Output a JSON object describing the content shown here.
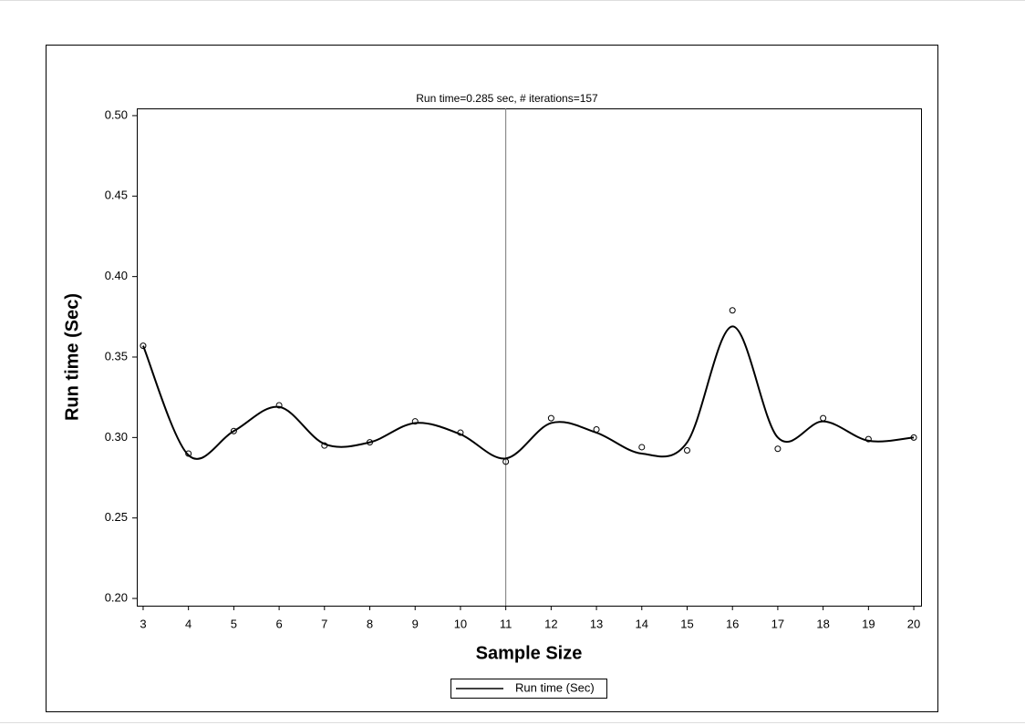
{
  "chart_data": {
    "type": "scatter",
    "title": "Run time=0.285 sec, # iterations=157",
    "x_label": "Sample Size",
    "y_label": "Run time (Sec)",
    "x": [
      3,
      4,
      5,
      6,
      7,
      8,
      9,
      10,
      11,
      12,
      13,
      14,
      15,
      16,
      17,
      18,
      19,
      20
    ],
    "values": [
      0.357,
      0.29,
      0.304,
      0.32,
      0.295,
      0.297,
      0.31,
      0.303,
      0.285,
      0.312,
      0.305,
      0.294,
      0.292,
      0.379,
      0.293,
      0.312,
      0.299,
      0.3
    ],
    "fit": {
      "name": "Run time (Sec)",
      "color": "#000000",
      "values": [
        0.357,
        0.289,
        0.304,
        0.319,
        0.296,
        0.297,
        0.309,
        0.302,
        0.287,
        0.309,
        0.303,
        0.29,
        0.297,
        0.369,
        0.3,
        0.31,
        0.298,
        0.3
      ]
    },
    "reference_x": 11,
    "xlim": [
      2.86,
      20.16
    ],
    "xticks": [
      3,
      4,
      5,
      6,
      7,
      8,
      9,
      10,
      11,
      12,
      13,
      14,
      15,
      16,
      17,
      18,
      19,
      20
    ],
    "ylim": [
      0.1955,
      0.5045
    ],
    "yticks": [
      {
        "value": 0.2,
        "label": "0.20"
      },
      0.25,
      {
        "value": 0.3,
        "label": "0.30"
      },
      0.35,
      {
        "value": 0.4,
        "label": "0.40"
      },
      0.45,
      {
        "value": 0.5,
        "label": "0.50"
      }
    ],
    "legend": "bottom"
  }
}
